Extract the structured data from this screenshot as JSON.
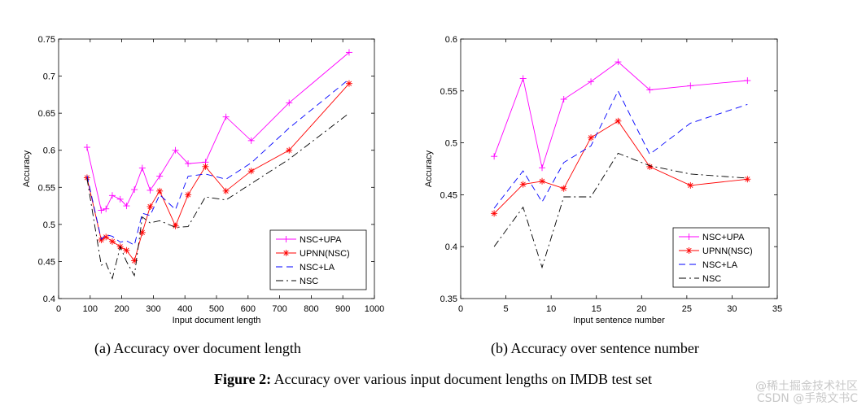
{
  "chart_data": [
    {
      "type": "line",
      "subcaption": "(a)  Accuracy over document length",
      "xlabel": "Input document length",
      "ylabel": "Accuracy",
      "xlim": [
        0,
        1000
      ],
      "ylim": [
        0.4,
        0.75
      ],
      "xticks": [
        0,
        100,
        200,
        300,
        400,
        500,
        600,
        700,
        800,
        900,
        1000
      ],
      "yticks": [
        0.4,
        0.45,
        0.5,
        0.55,
        0.6,
        0.65,
        0.7,
        0.75
      ],
      "xtick_labels": [
        "0",
        "100",
        "200",
        "300",
        "400",
        "500",
        "600",
        "700",
        "800",
        "900",
        "1000"
      ],
      "ytick_labels": [
        "0.4",
        "0.45",
        "0.5",
        "0.55",
        "0.6",
        "0.65",
        "0.7",
        "0.75"
      ],
      "legend_position": "bottom-right",
      "series": [
        {
          "name": "NSC+UPA",
          "color": "#ff00ff",
          "style": "solid",
          "marker": "plus",
          "x": [
            90,
            135,
            150,
            170,
            195,
            215,
            240,
            265,
            290,
            320,
            370,
            410,
            465,
            530,
            610,
            730,
            920
          ],
          "y": [
            0.604,
            0.519,
            0.521,
            0.539,
            0.534,
            0.525,
            0.547,
            0.576,
            0.546,
            0.565,
            0.6,
            0.582,
            0.584,
            0.645,
            0.613,
            0.664,
            0.732
          ]
        },
        {
          "name": "UPNN(NSC)",
          "color": "#ff0000",
          "style": "solid",
          "marker": "star",
          "x": [
            90,
            135,
            150,
            170,
            195,
            215,
            240,
            265,
            290,
            320,
            370,
            410,
            465,
            530,
            610,
            730,
            920
          ],
          "y": [
            0.563,
            0.479,
            0.483,
            0.477,
            0.47,
            0.465,
            0.451,
            0.489,
            0.524,
            0.545,
            0.498,
            0.54,
            0.578,
            0.545,
            0.572,
            0.6,
            0.69
          ]
        },
        {
          "name": "NSC+LA",
          "color": "#0000ff",
          "style": "dashed",
          "marker": "none",
          "x": [
            90,
            135,
            150,
            170,
            195,
            215,
            240,
            265,
            290,
            320,
            370,
            410,
            465,
            530,
            610,
            730,
            920
          ],
          "y": [
            0.566,
            0.48,
            0.486,
            0.484,
            0.476,
            0.478,
            0.472,
            0.515,
            0.512,
            0.54,
            0.52,
            0.565,
            0.568,
            0.561,
            0.583,
            0.63,
            0.696
          ]
        },
        {
          "name": "NSC",
          "color": "#000000",
          "style": "dashdot",
          "marker": "none",
          "x": [
            90,
            135,
            150,
            170,
            195,
            215,
            240,
            265,
            290,
            320,
            370,
            410,
            465,
            530,
            610,
            730,
            920
          ],
          "y": [
            0.562,
            0.445,
            0.448,
            0.427,
            0.47,
            0.45,
            0.431,
            0.51,
            0.502,
            0.505,
            0.496,
            0.497,
            0.537,
            0.533,
            0.555,
            0.588,
            0.65
          ]
        }
      ]
    },
    {
      "type": "line",
      "subcaption": "(b)  Accuracy over sentence number",
      "xlabel": "Input sentence number",
      "ylabel": "Accuracy",
      "xlim": [
        0,
        35
      ],
      "ylim": [
        0.35,
        0.6
      ],
      "xticks": [
        0,
        5,
        10,
        15,
        20,
        25,
        30,
        35
      ],
      "yticks": [
        0.35,
        0.4,
        0.45,
        0.5,
        0.55,
        0.6
      ],
      "xtick_labels": [
        "0",
        "5",
        "10",
        "15",
        "20",
        "25",
        "30",
        "35"
      ],
      "ytick_labels": [
        "0.35",
        "0.4",
        "0.45",
        "0.5",
        "0.55",
        "0.6"
      ],
      "legend_position": "bottom-right",
      "series": [
        {
          "name": "NSC+UPA",
          "color": "#ff00ff",
          "style": "solid",
          "marker": "plus",
          "x": [
            3.7,
            6.9,
            9.0,
            11.4,
            14.4,
            17.4,
            20.9,
            25.4,
            31.7
          ],
          "y": [
            0.487,
            0.562,
            0.476,
            0.542,
            0.559,
            0.578,
            0.551,
            0.555,
            0.56
          ]
        },
        {
          "name": "UPNN(NSC)",
          "color": "#ff0000",
          "style": "solid",
          "marker": "star",
          "x": [
            3.7,
            6.9,
            9.0,
            11.4,
            14.4,
            17.4,
            20.9,
            25.4,
            31.7
          ],
          "y": [
            0.432,
            0.46,
            0.463,
            0.456,
            0.505,
            0.521,
            0.477,
            0.459,
            0.465
          ]
        },
        {
          "name": "NSC+LA",
          "color": "#0000ff",
          "style": "dashed",
          "marker": "none",
          "x": [
            3.7,
            6.9,
            9.0,
            11.4,
            14.4,
            17.4,
            20.9,
            25.4,
            31.7
          ],
          "y": [
            0.437,
            0.473,
            0.443,
            0.481,
            0.497,
            0.55,
            0.489,
            0.519,
            0.537
          ]
        },
        {
          "name": "NSC",
          "color": "#000000",
          "style": "dashdot",
          "marker": "none",
          "x": [
            3.7,
            6.9,
            9.0,
            11.4,
            14.4,
            17.4,
            20.9,
            25.4,
            31.7
          ],
          "y": [
            0.4,
            0.438,
            0.38,
            0.448,
            0.448,
            0.49,
            0.478,
            0.47,
            0.466
          ]
        }
      ]
    }
  ],
  "figure_caption": {
    "label": "Figure 2:",
    "text": " Accuracy over various input document lengths on IMDB test set"
  },
  "watermark": {
    "line1": "@稀土掘金技术社区",
    "line2": "CSDN @手殻文书C"
  }
}
